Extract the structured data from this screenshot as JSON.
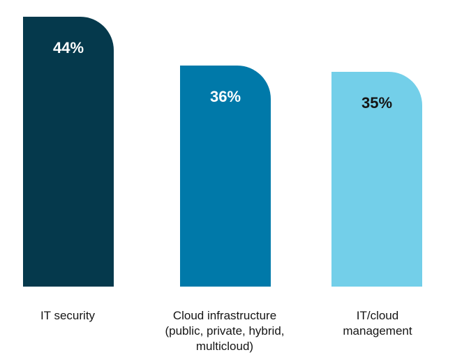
{
  "chart_data": {
    "type": "bar",
    "categories": [
      "IT security",
      "Cloud infrastructure\n(public, private, hybrid,\nmulticloud)",
      "IT/cloud\nmanagement"
    ],
    "values": [
      44,
      36,
      35
    ],
    "value_labels": [
      "44%",
      "36%",
      "35%"
    ],
    "colors": [
      "#05394c",
      "#0079a9",
      "#73cfe9"
    ],
    "label_colors": [
      "#ffffff",
      "#ffffff",
      "#151515"
    ],
    "ylim": [
      0,
      44
    ],
    "grid": false,
    "title": "",
    "xlabel": "",
    "ylabel": ""
  }
}
